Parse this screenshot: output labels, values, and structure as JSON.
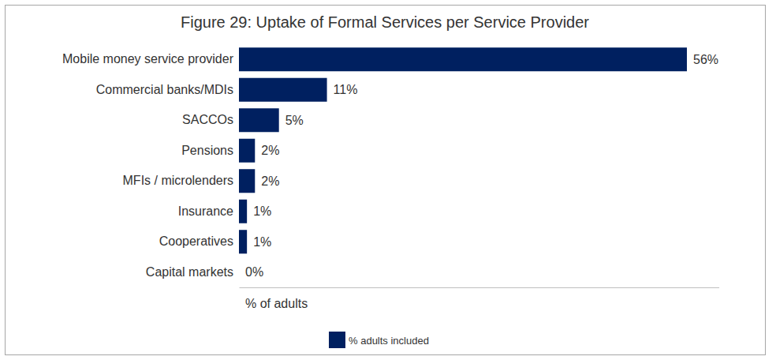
{
  "chart_data": {
    "type": "bar",
    "orientation": "horizontal",
    "title": "Figure 29: Uptake of Formal Services per Service Provider",
    "categories": [
      "Mobile money service provider",
      "Commercial banks/MDIs",
      "SACCOs",
      "Pensions",
      "MFIs / microlenders",
      "Insurance",
      "Cooperatives",
      "Capital markets"
    ],
    "series": [
      {
        "name": "% adults included",
        "color": "#002060",
        "values": [
          56,
          11,
          5,
          2,
          2,
          1,
          1,
          0
        ],
        "value_labels": [
          "56%",
          "11%",
          "5%",
          "2%",
          "2%",
          "1%",
          "1%",
          "0%"
        ]
      }
    ],
    "x_label": "% of adults",
    "xlim": [
      0,
      60
    ],
    "xticks": [],
    "tick_labels": "y",
    "data_labels": true,
    "legend": "bottom"
  }
}
